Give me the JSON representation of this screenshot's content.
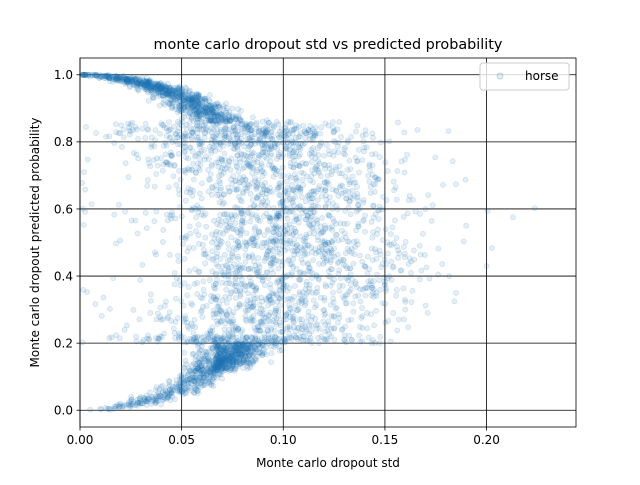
{
  "chart_data": {
    "type": "scatter",
    "title": "monte carlo dropout std vs predicted probability",
    "xlabel": "Monte carlo dropout std",
    "ylabel": "Monte carlo dropout predicted probability",
    "xlim": [
      0,
      0.244
    ],
    "ylim": [
      -0.05,
      1.05
    ],
    "xticks": [
      0.0,
      0.05,
      0.1,
      0.15,
      0.2
    ],
    "xtick_labels": [
      "0.00",
      "0.05",
      "0.10",
      "0.15",
      "0.20"
    ],
    "yticks": [
      0.0,
      0.2,
      0.4,
      0.6,
      0.8,
      1.0
    ],
    "ytick_labels": [
      "0.0",
      "0.2",
      "0.4",
      "0.6",
      "0.8",
      "1.0"
    ],
    "grid": true,
    "legend": {
      "placement": "top-right",
      "entries": [
        "horse"
      ]
    },
    "series": [
      {
        "name": "horse",
        "color": "#1f77b4",
        "marker_alpha": 0.12,
        "point_count": 4000,
        "distribution_note": "points follow std ≈ c·sqrt(p(1-p)); tight near p=0 and p=1, widely spread for 0.2<p<0.85",
        "sample_points": [
          [
            0.005,
            0.995
          ],
          [
            0.012,
            0.99
          ],
          [
            0.02,
            0.985
          ],
          [
            0.03,
            0.975
          ],
          [
            0.04,
            0.96
          ],
          [
            0.05,
            0.94
          ],
          [
            0.06,
            0.92
          ],
          [
            0.07,
            0.88
          ],
          [
            0.08,
            0.84
          ],
          [
            0.09,
            0.78
          ],
          [
            0.1,
            0.7
          ],
          [
            0.11,
            0.6
          ],
          [
            0.12,
            0.5
          ],
          [
            0.1,
            0.4
          ],
          [
            0.09,
            0.3
          ],
          [
            0.08,
            0.22
          ],
          [
            0.06,
            0.14
          ],
          [
            0.05,
            0.1
          ],
          [
            0.04,
            0.07
          ],
          [
            0.03,
            0.04
          ],
          [
            0.02,
            0.02
          ],
          [
            0.01,
            0.005
          ],
          [
            0.005,
            0.002
          ],
          [
            0.15,
            0.45
          ],
          [
            0.17,
            0.6
          ],
          [
            0.19,
            0.55
          ],
          [
            0.213,
            0.575
          ],
          [
            0.2,
            0.43
          ],
          [
            0.185,
            0.35
          ],
          [
            0.16,
            0.3
          ]
        ]
      }
    ]
  }
}
